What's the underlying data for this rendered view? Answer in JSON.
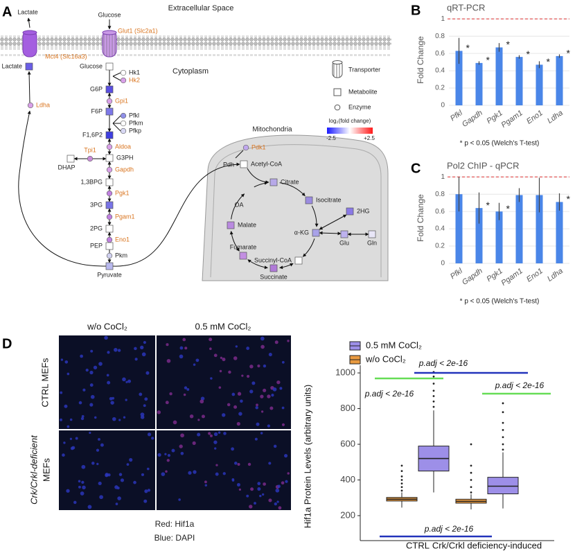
{
  "panel_labels": [
    "A",
    "B",
    "C",
    "D"
  ],
  "pathway": {
    "compartments": {
      "extracellular": "Extracellular Space",
      "cytoplasm": "Cytoplasm",
      "mitochondria": "Mitochondria"
    },
    "labels": [
      {
        "label": "Lactate"
      },
      {
        "label": "Glucose"
      },
      {
        "label": "OA"
      },
      {
        "label": "Pdh"
      }
    ],
    "transporters": [
      {
        "label": "Mct4 (Slc16a3)",
        "color": "#a45ee0"
      },
      {
        "label": "Glut1 (Slc2a1)",
        "color": "#c99ae6"
      }
    ],
    "metabolites": [
      {
        "label": "Lactate",
        "color": "#6a5ee6"
      },
      {
        "label": "Glucose",
        "color": "#ffffff"
      },
      {
        "label": "G6P",
        "color": "#5a4fe0"
      },
      {
        "label": "F6P",
        "color": "#7d78e8"
      },
      {
        "label": "F1,6P2",
        "color": "#3f3ee0"
      },
      {
        "label": "G3PH",
        "color": "#ffffff"
      },
      {
        "label": "DHAP",
        "color": "#ffffff"
      },
      {
        "label": "1,3BPG",
        "color": "#ffffff"
      },
      {
        "label": "3PG",
        "color": "#7873e6"
      },
      {
        "label": "2PG",
        "color": "#ffffff"
      },
      {
        "label": "PEP",
        "color": "#ffffff"
      },
      {
        "label": "Pyruvate",
        "color": "#b8b8ee"
      },
      {
        "label": "Acetyl-CoA",
        "color": "#ffffff"
      },
      {
        "label": "Citrate",
        "color": "#b7a9e8"
      },
      {
        "label": "Isocitrate",
        "color": "#9b8ce0"
      },
      {
        "label": "α-KG",
        "color": "#a8a2e8"
      },
      {
        "label": "2HG",
        "color": "#8a79e6"
      },
      {
        "label": "Glu",
        "color": "#bdb2ee"
      },
      {
        "label": "Gln",
        "color": "#e8e6f7"
      },
      {
        "label": "Succinyl-CoA",
        "color": "#ffffff"
      },
      {
        "label": "Succinate",
        "color": "#b07ad8"
      },
      {
        "label": "Fumarate",
        "color": "#c38fe2"
      },
      {
        "label": "Malate",
        "color": "#b98ae0"
      }
    ],
    "enzymes": [
      {
        "label": "Hk1",
        "color": "#ffffff",
        "highlight": false
      },
      {
        "label": "Hk2",
        "color": "#d9a0e8",
        "highlight": true
      },
      {
        "label": "Pfkl",
        "color": "#8f8fe8",
        "highlight": false
      },
      {
        "label": "Pfkm",
        "color": "#ffffff",
        "highlight": false
      },
      {
        "label": "Pfkp",
        "color": "#d8d8f4",
        "highlight": false
      },
      {
        "label": "Gpi1",
        "color": "#d9a0e8",
        "highlight": true
      },
      {
        "label": "Aldoa",
        "color": "#d9a0e8",
        "highlight": true
      },
      {
        "label": "Tpi1",
        "color": "#c98ad8",
        "highlight": true
      },
      {
        "label": "Gapdh",
        "color": "#d9a0e8",
        "highlight": true
      },
      {
        "label": "Pgk1",
        "color": "#c080e0",
        "highlight": true
      },
      {
        "label": "Pgam1",
        "color": "#c080e0",
        "highlight": true
      },
      {
        "label": "Eno1",
        "color": "#c080e0",
        "highlight": true
      },
      {
        "label": "Pkm",
        "color": "#d0d0f0",
        "highlight": false
      },
      {
        "label": "Ldha",
        "color": "#d9a0e8",
        "highlight": true
      },
      {
        "label": "Pdk1",
        "color": "#c0a8ee",
        "highlight": true
      }
    ],
    "legend": {
      "transporter": "Transporter",
      "metabolite": "Metabolite",
      "enzyme": "Enzyme",
      "scale_title": "log₂(fold change)",
      "low": "-2.5",
      "high": "+2.5",
      "low_color": "#1a1aff",
      "high_color": "#ff1a1a"
    }
  },
  "chart_data": [
    {
      "type": "bar",
      "title": "qRT-PCR",
      "y_label": "Fold Change",
      "color": "#4a86e8",
      "categories": [
        "Pfkl",
        "Gapdh",
        "Pgk1",
        "Pgam1",
        "Eno1",
        "Ldha"
      ],
      "values": [
        0.63,
        0.49,
        0.67,
        0.56,
        0.47,
        0.57
      ],
      "errors": [
        0.15,
        0.02,
        0.05,
        0.02,
        0.04,
        0.02
      ],
      "significance": [
        "*",
        "*",
        "*",
        "*",
        "*",
        "*"
      ],
      "ylim": [
        0,
        1.05
      ],
      "yticks": [
        0,
        0.2,
        0.4,
        0.6,
        0.8,
        1
      ],
      "reference_line": 1,
      "reference_color": "#e03030",
      "grid": true,
      "footnote": "* p < 0.05 (Welch's T-test)"
    },
    {
      "type": "bar",
      "title": "Pol2 ChIP - qPCR",
      "y_label": "Fold Change",
      "color": "#4a86e8",
      "categories": [
        "Pfkl",
        "Gapdh",
        "Pgk1",
        "Pgam1",
        "Eno1",
        "Ldha"
      ],
      "values": [
        0.8,
        0.64,
        0.6,
        0.79,
        0.79,
        0.71
      ],
      "errors": [
        0.2,
        0.18,
        0.1,
        0.08,
        0.2,
        0.1
      ],
      "significance": [
        null,
        "*",
        "*",
        null,
        null,
        "*"
      ],
      "ylim": [
        0,
        1.05
      ],
      "yticks": [
        0,
        0.2,
        0.4,
        0.6,
        0.8,
        1
      ],
      "reference_line": 1,
      "reference_color": "#e03030",
      "grid": true,
      "footnote": "* p < 0.05 (Welch's T-test)"
    },
    {
      "type": "box",
      "y_label": "Hif1a Protein Levels (arbitrary units)",
      "categories": [
        "CTRL",
        "Crk/Crkl deficiency-induced"
      ],
      "series": [
        {
          "name": "0.5 mM CoCl₂",
          "color": "#9d8fe8",
          "boxes": [
            {
              "low": 330,
              "q1": 450,
              "median": 520,
              "q3": 590,
              "high": 790,
              "outliers": [
                810,
                840,
                870,
                900,
                940,
                980,
                1005
              ]
            },
            {
              "low": 240,
              "q1": 322,
              "median": 365,
              "q3": 415,
              "high": 555,
              "outliers": [
                570,
                600,
                640,
                680,
                720,
                780,
                830
              ]
            }
          ]
        },
        {
          "name": "w/o CoCl₂",
          "color": "#e89a40",
          "boxes": [
            {
              "low": 245,
              "q1": 282,
              "median": 292,
              "q3": 302,
              "high": 330,
              "outliers": [
                340,
                360,
                380,
                400,
                420,
                450,
                480
              ]
            },
            {
              "low": 235,
              "q1": 270,
              "median": 280,
              "q3": 292,
              "high": 320,
              "outliers": [
                330,
                360,
                400,
                440,
                480,
                600
              ]
            }
          ]
        }
      ],
      "ylim": [
        60,
        1043
      ],
      "yticks": [
        200,
        400,
        600,
        800,
        1000
      ],
      "grid": false,
      "comparisons": [
        {
          "label": "p.adj < 2e-16",
          "color": "#66dd55"
        },
        {
          "label": "p.adj < 2e-16",
          "color": "#2233bb"
        },
        {
          "label": "p.adj < 2e-16",
          "color": "#66dd55"
        },
        {
          "label": "p.adj < 2e-16",
          "color": "#2233bb"
        }
      ]
    }
  ],
  "microscopy": {
    "columns": [
      "w/o CoCl₂",
      "0.5 mM CoCl₂"
    ],
    "rows": [
      [
        "CTRL MEFs"
      ],
      [
        "Crk/Crkl-deficient",
        "MEFs"
      ]
    ],
    "caption": [
      "Red: Hif1a",
      "Blue: DAPI"
    ]
  }
}
